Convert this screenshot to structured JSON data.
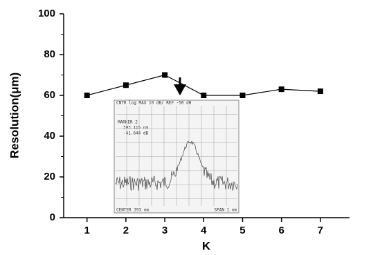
{
  "chart_data": {
    "type": "line",
    "x": [
      1,
      2,
      3,
      4,
      5,
      6,
      7
    ],
    "series": [
      {
        "color": "#000000",
        "values": [
          60,
          65,
          70,
          60,
          60,
          63,
          62
        ]
      }
    ],
    "xlim": [
      0.4,
      7.75
    ],
    "xticks": [
      1,
      2,
      3,
      4,
      5,
      6,
      7
    ],
    "ylim": [
      0,
      100
    ],
    "yticks": [
      0,
      20,
      40,
      60,
      80,
      100
    ],
    "yminor": [
      10,
      30,
      50,
      70,
      90
    ],
    "xlabel": "K",
    "ylabel": "Resolution(μm)"
  },
  "inset": {
    "header": "CNTR log MAX  10 dB/  REF -50 dB",
    "marker": "MARKER 2",
    "wavelength": "393.115 nm",
    "level": "-41.644 dB",
    "center": "CENTER 393 nm",
    "span": "SPAN 1 nm"
  }
}
